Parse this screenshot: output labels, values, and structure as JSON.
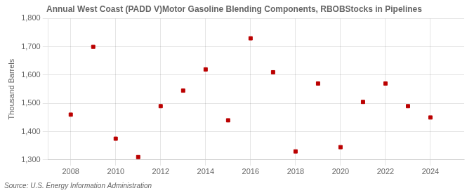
{
  "chart_data": {
    "type": "scatter",
    "title": "Annual West Coast (PADD V)Motor Gasoline Blending Components, RBOBStocks in Pipelines",
    "ylabel": "Thousand Barrels",
    "annotations": [
      "Source: U.S. Energy Information Administration"
    ],
    "x": [
      2008,
      2009,
      2010,
      2011,
      2012,
      2013,
      2014,
      2015,
      2016,
      2017,
      2018,
      2019,
      2020,
      2021,
      2022,
      2023,
      2024
    ],
    "values": [
      1460,
      1700,
      1375,
      1310,
      1490,
      1545,
      1620,
      1440,
      1730,
      1610,
      1330,
      1570,
      1345,
      1505,
      1570,
      1490,
      1450
    ],
    "color": "#bb0000",
    "marker": "square",
    "xlim": [
      2007.0,
      2025.5
    ],
    "xticks": [
      2008,
      2010,
      2012,
      2014,
      2016,
      2018,
      2020,
      2022,
      2024
    ],
    "ylim": [
      1300,
      1800
    ],
    "yticks": [
      {
        "value": 1300,
        "label": "1,300"
      },
      {
        "value": 1400,
        "label": "1,400"
      },
      {
        "value": 1500,
        "label": "1,500"
      },
      {
        "value": 1600,
        "label": "1,600"
      },
      {
        "value": 1700,
        "label": "1,700"
      },
      {
        "value": 1800,
        "label": "1,800"
      }
    ],
    "grid": true
  }
}
